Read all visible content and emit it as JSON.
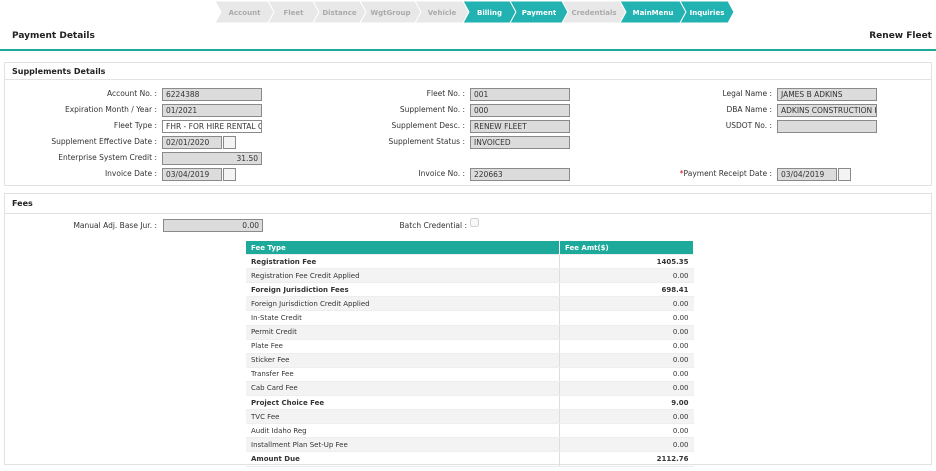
{
  "breadcrumb": [
    {
      "label": "Account",
      "active": false
    },
    {
      "label": "Fleet",
      "active": false
    },
    {
      "label": "Distance",
      "active": false
    },
    {
      "label": "WgtGroup",
      "active": false
    },
    {
      "label": "Vehicle",
      "active": false
    },
    {
      "label": "Billing",
      "active": true
    },
    {
      "label": "Payment",
      "active": true
    },
    {
      "label": "Credentials",
      "active": false
    },
    {
      "label": "MainMenu",
      "active": true
    },
    {
      "label": "Inquiries",
      "active": true
    }
  ],
  "header": {
    "title": "Payment Details",
    "action": "Renew Fleet"
  },
  "supplements": {
    "title": "Supplements Details",
    "rows": [
      [
        {
          "label": "Account No. :",
          "value": "6224388"
        },
        {
          "label": "Fleet No. :",
          "value": "001"
        },
        {
          "label": "Legal Name :",
          "value": "JAMES B ADKINS"
        }
      ],
      [
        {
          "label": "Expiration Month / Year :",
          "value": "01/2021"
        },
        {
          "label": "Supplement No. :",
          "value": "000"
        },
        {
          "label": "DBA Name :",
          "value": "ADKINS CONSTRUCTION INC"
        }
      ],
      [
        {
          "label": "Fleet Type :",
          "value": "FHR - FOR HIRE RENTAL CARRIE",
          "editable": true
        },
        {
          "label": "Supplement Desc. :",
          "value": "RENEW FLEET"
        },
        {
          "label": "USDOT No. :",
          "value": ""
        }
      ],
      [
        {
          "label": "Supplement Effective Date :",
          "value": "02/01/2020",
          "date": true
        },
        {
          "label": "Supplement Status :",
          "value": "INVOICED"
        },
        null
      ],
      [
        {
          "label": "Enterprise System Credit :",
          "value": "31.50",
          "align": "right"
        },
        null,
        null
      ],
      [
        {
          "label": "Invoice Date :",
          "value": "03/04/2019",
          "date": true
        },
        {
          "label": "Invoice No. :",
          "value": "220663"
        },
        {
          "label": "Payment Receipt Date :",
          "value": "03/04/2019",
          "date": true,
          "marker": "*"
        }
      ]
    ]
  },
  "fees": {
    "title": "Fees",
    "manual_adj": {
      "label": "Manual Adj. Base Jur. :",
      "value": "0.00"
    },
    "batch_credential": {
      "label": "Batch Credential :",
      "checked": false
    },
    "table": {
      "columns": [
        "Fee Type",
        "Fee Amt($)"
      ],
      "rows": [
        {
          "name": "Registration Fee",
          "amount": "1405.35",
          "bold": true
        },
        {
          "name": "Registration Fee Credit Applied",
          "amount": "0.00",
          "bold": false
        },
        {
          "name": "Foreign Jurisdiction Fees",
          "amount": "698.41",
          "bold": true
        },
        {
          "name": "Foreign Jurisdiction Credit Applied",
          "amount": "0.00",
          "bold": false
        },
        {
          "name": "In-State Credit",
          "amount": "0.00",
          "bold": false
        },
        {
          "name": "Permit Credit",
          "amount": "0.00",
          "bold": false
        },
        {
          "name": "Plate Fee",
          "amount": "0.00",
          "bold": false
        },
        {
          "name": "Sticker Fee",
          "amount": "0.00",
          "bold": false
        },
        {
          "name": "Transfer Fee",
          "amount": "0.00",
          "bold": false
        },
        {
          "name": "Cab Card Fee",
          "amount": "0.00",
          "bold": false
        },
        {
          "name": "Project Choice Fee",
          "amount": "9.00",
          "bold": true
        },
        {
          "name": "TVC Fee",
          "amount": "0.00",
          "bold": false
        },
        {
          "name": "Audit Idaho Reg",
          "amount": "0.00",
          "bold": false
        },
        {
          "name": "Installment Plan Set-Up Fee",
          "amount": "0.00",
          "bold": false
        },
        {
          "name": "Amount Due",
          "amount": "2112.76",
          "bold": true
        }
      ]
    }
  }
}
